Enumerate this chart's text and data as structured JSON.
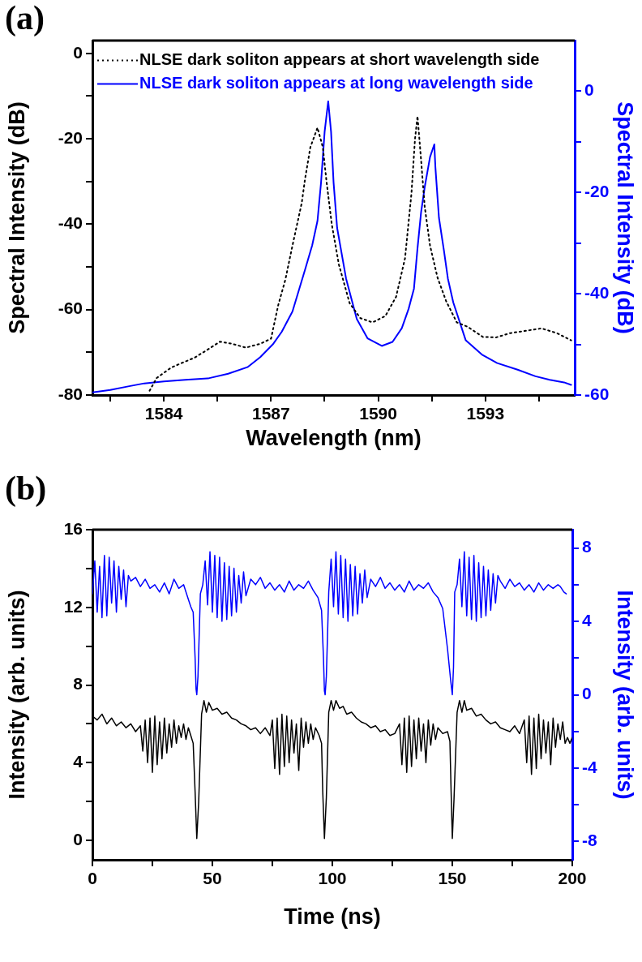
{
  "chart_data": [
    {
      "type": "line",
      "title": "(a)",
      "xlabel": "Wavelength (nm)",
      "ylabel": "Spectral Intensity (dB)",
      "y2label": "Spectral Intensity (dB)",
      "xlim": [
        1582,
        1595.5
      ],
      "xticks": [
        {
          "value": 1582.5,
          "label": null
        },
        1584,
        {
          "value": 1585.5,
          "label": null
        },
        1587,
        {
          "value": 1588.5,
          "label": null
        },
        1590,
        {
          "value": 1591.5,
          "label": null
        },
        1593,
        {
          "value": 1594.5,
          "label": null
        }
      ],
      "ylim": [
        -80,
        3
      ],
      "yticks": [
        -80,
        {
          "value": -70,
          "label": null
        },
        -60,
        {
          "value": -50,
          "label": null
        },
        -40,
        {
          "value": -30,
          "label": null
        },
        -20,
        {
          "value": -10,
          "label": null
        },
        0
      ],
      "y2lim": [
        -60,
        10
      ],
      "y2ticks": [
        -60,
        {
          "value": -50,
          "label": null
        },
        -40,
        {
          "value": -30,
          "label": null
        },
        -20,
        {
          "value": -10,
          "label": null
        },
        0
      ],
      "legend": "top left",
      "series": [
        {
          "name": "NLSE dark soliton appears at short wavelength side",
          "color": "#000000",
          "line_style": "dotted",
          "x": [
            1583.6,
            1583.8,
            1584.2,
            1584.5,
            1584.85,
            1585.2,
            1585.57,
            1585.9,
            1586.3,
            1586.7,
            1587.0,
            1587.2,
            1587.4,
            1587.6,
            1587.86,
            1587.95,
            1588.1,
            1588.3,
            1588.45,
            1588.55,
            1588.7,
            1588.9,
            1589.2,
            1589.5,
            1589.84,
            1590.2,
            1590.5,
            1590.75,
            1590.93,
            1591.03,
            1591.1,
            1591.2,
            1591.3,
            1591.45,
            1591.66,
            1591.9,
            1592.2,
            1592.5,
            1592.93,
            1593.3,
            1593.7,
            1594.1,
            1594.57,
            1595.0,
            1595.4
          ],
          "values": [
            -79,
            -76,
            -73.6,
            -72.5,
            -71.3,
            -69.5,
            -67.5,
            -68,
            -68.9,
            -68,
            -66.8,
            -59,
            -53,
            -45,
            -35,
            -29.5,
            -22,
            -17.4,
            -22,
            -29.8,
            -40,
            -49.5,
            -58.5,
            -62,
            -63,
            -61.5,
            -57,
            -48,
            -32.8,
            -20,
            -14.7,
            -25,
            -35.8,
            -45,
            -52.5,
            -58,
            -63,
            -64,
            -66.4,
            -66.5,
            -65.5,
            -65,
            -64.4,
            -65.5,
            -67.2
          ]
        },
        {
          "name": "NLSE dark soliton appears at long wavelength side",
          "color": "#0000ff",
          "line_style": "solid",
          "axis": "y2",
          "x": [
            1582,
            1582.5,
            1583,
            1583.45,
            1584,
            1584.6,
            1585.25,
            1585.8,
            1586.34,
            1586.7,
            1587.05,
            1587.3,
            1587.6,
            1587.95,
            1588.15,
            1588.3,
            1588.4,
            1588.5,
            1588.6,
            1588.68,
            1588.75,
            1588.85,
            1589.1,
            1589.4,
            1589.7,
            1590.1,
            1590.4,
            1590.66,
            1590.85,
            1591.0,
            1591.1,
            1591.2,
            1591.3,
            1591.45,
            1591.57,
            1591.6,
            1591.7,
            1591.84,
            1591.95,
            1592.1,
            1592.45,
            1592.9,
            1593.33,
            1593.9,
            1594.4,
            1594.8,
            1595.2,
            1595.4
          ],
          "values": [
            -59.5,
            -59,
            -58.3,
            -57.7,
            -57.3,
            -57,
            -56.7,
            -55.8,
            -54.5,
            -52.5,
            -50,
            -47.5,
            -43.5,
            -35.3,
            -30.5,
            -25.6,
            -18,
            -8,
            -2,
            -8,
            -18,
            -27,
            -37,
            -45,
            -48.8,
            -50.3,
            -49.5,
            -46.8,
            -43,
            -39,
            -31,
            -23.9,
            -19,
            -13,
            -10.5,
            -15,
            -25,
            -31.5,
            -37,
            -41.7,
            -49.2,
            -52,
            -53.7,
            -55,
            -56.3,
            -57,
            -57.5,
            -58
          ]
        }
      ]
    },
    {
      "type": "line",
      "title": "(b)",
      "xlabel": "Time (ns)",
      "ylabel": "Intensity (arb. units)",
      "y2label": "Intensity (arb. units)",
      "xlim": [
        0,
        200
      ],
      "xticks": [
        0,
        {
          "value": 25,
          "label": null
        },
        50,
        {
          "value": 75,
          "label": null
        },
        100,
        {
          "value": 125,
          "label": null
        },
        150,
        {
          "value": 175,
          "label": null
        },
        200
      ],
      "ylim": [
        -1,
        16
      ],
      "yticks": [
        0,
        {
          "value": 2,
          "label": null
        },
        4,
        {
          "value": 6,
          "label": null
        },
        8,
        {
          "value": 10,
          "label": null
        },
        12,
        {
          "value": 14,
          "label": null
        },
        16
      ],
      "y2lim": [
        -9,
        9
      ],
      "y2ticks": [
        -8,
        {
          "value": -6,
          "label": null
        },
        -4,
        {
          "value": -2,
          "label": null
        },
        0,
        {
          "value": 2,
          "label": null
        },
        4,
        {
          "value": 6,
          "label": null
        },
        8
      ],
      "series": [
        {
          "color": "#000000",
          "line_style": "solid",
          "x": [
            0,
            2,
            4,
            6,
            8,
            10,
            12,
            14,
            16,
            18,
            20,
            21,
            22,
            23,
            24,
            25,
            26,
            27,
            28,
            29,
            30,
            31,
            32,
            33,
            34,
            35,
            36,
            37,
            38,
            39,
            40,
            41,
            42,
            42.8,
            43.5,
            44.3,
            45.5,
            46.5,
            47.5,
            48.5,
            50,
            52,
            54,
            56,
            58,
            60,
            62,
            64,
            66,
            68,
            70,
            72,
            74,
            75,
            76,
            77,
            78,
            79,
            80,
            81,
            82,
            83,
            84,
            85,
            86,
            87,
            88,
            89,
            90,
            91,
            92,
            93,
            94.5,
            95.5,
            96,
            96.7,
            97.5,
            98.5,
            99.5,
            100.5,
            101.5,
            103,
            104.5,
            106,
            108,
            110,
            112,
            114,
            116,
            118,
            120,
            122,
            124,
            126,
            128,
            129,
            130,
            131,
            132,
            133,
            134,
            135,
            136,
            137,
            138,
            139,
            140,
            141,
            142,
            143,
            144,
            146,
            148,
            149,
            149.5,
            150,
            150.7,
            152,
            153,
            154,
            155,
            156,
            158,
            160,
            162,
            164,
            166,
            168,
            170,
            172,
            174,
            176,
            178,
            180,
            181,
            182,
            183,
            184,
            185,
            186,
            187,
            188,
            189,
            190,
            191,
            192,
            193,
            194,
            195,
            196,
            197,
            198,
            199,
            200
          ],
          "values": [
            6.4,
            6.2,
            6.5,
            6.0,
            6.3,
            5.9,
            6.1,
            5.8,
            6.0,
            5.6,
            5.9,
            4.6,
            6.2,
            4.0,
            6.3,
            3.5,
            6.4,
            3.9,
            6.1,
            4.2,
            6.3,
            4.5,
            6.0,
            4.8,
            6.2,
            5.0,
            5.9,
            5.3,
            6.0,
            5.2,
            5.8,
            5.4,
            5.0,
            2.5,
            0.1,
            2.0,
            6.5,
            7.2,
            6.6,
            7.1,
            6.7,
            6.8,
            6.5,
            6.6,
            6.3,
            6.2,
            6.0,
            5.9,
            5.7,
            5.8,
            5.5,
            5.8,
            5.4,
            6.2,
            3.7,
            6.3,
            3.4,
            6.5,
            3.8,
            6.4,
            4.0,
            6.2,
            4.5,
            6.0,
            3.6,
            6.3,
            4.8,
            6.1,
            5.0,
            6.0,
            5.2,
            5.8,
            5.4,
            5.0,
            2.5,
            0.1,
            2.2,
            6.6,
            7.2,
            6.7,
            7.2,
            6.8,
            6.9,
            6.5,
            6.6,
            6.3,
            6.1,
            6.0,
            5.8,
            5.9,
            5.6,
            5.7,
            5.4,
            5.5,
            6.0,
            3.9,
            6.3,
            3.5,
            6.4,
            3.8,
            6.2,
            4.2,
            6.3,
            4.6,
            6.0,
            4.0,
            6.2,
            4.9,
            6.0,
            5.2,
            5.8,
            5.5,
            5.6,
            5.1,
            2.5,
            0.1,
            2.1,
            6.6,
            7.2,
            6.6,
            7.2,
            6.7,
            6.8,
            6.4,
            6.5,
            6.2,
            6.0,
            6.1,
            5.8,
            5.7,
            5.6,
            5.9,
            5.5,
            6.2,
            4.0,
            6.4,
            3.4,
            6.3,
            3.7,
            6.5,
            4.2,
            6.2,
            4.5,
            6.1,
            3.9,
            6.3,
            4.8,
            6.0,
            5.2,
            6.1,
            5.0,
            5.3,
            5.0,
            5.3
          ]
        },
        {
          "color": "#0000ff",
          "line_style": "solid",
          "axis": "y2",
          "x": [
            0,
            1,
            2,
            3,
            4,
            5,
            6,
            7,
            8,
            9,
            10,
            11,
            12,
            13,
            14,
            15,
            16,
            18,
            20,
            22,
            24,
            26,
            28,
            30,
            32,
            34,
            36,
            38,
            40,
            41,
            42,
            42.8,
            43.2,
            43.5,
            44,
            45,
            46,
            47,
            48,
            49,
            50,
            51,
            52,
            53,
            54,
            55,
            56,
            57,
            58,
            59,
            60,
            61,
            62,
            63,
            64,
            66,
            68,
            70,
            72,
            74,
            76,
            78,
            80,
            82,
            84,
            86,
            88,
            90,
            92,
            94,
            95.5,
            96.3,
            96.7,
            97,
            97.5,
            98.5,
            99.5,
            100.5,
            101.5,
            102.5,
            103.5,
            104.5,
            105.5,
            106.5,
            107.5,
            108.5,
            109.5,
            110.5,
            111.5,
            112.5,
            113.5,
            114.5,
            116,
            118,
            120,
            122,
            124,
            126,
            128,
            130,
            132,
            134,
            136,
            138,
            140,
            142,
            144,
            146,
            148,
            149.3,
            150,
            150.5,
            151,
            152,
            153,
            154,
            155,
            156,
            157,
            158,
            159,
            160,
            161,
            162,
            163,
            164,
            165,
            166,
            167,
            168,
            169,
            170,
            172,
            174,
            176,
            178,
            180,
            182,
            184,
            186,
            188,
            190,
            192,
            194,
            195,
            196.5,
            197.5
          ],
          "values": [
            5.5,
            7.3,
            4.5,
            7.0,
            4.2,
            7.6,
            4.3,
            7.5,
            5.0,
            7.3,
            4.5,
            7.0,
            5.2,
            6.8,
            4.8,
            6.5,
            6.2,
            6.4,
            5.9,
            6.3,
            5.8,
            6.0,
            5.6,
            6.1,
            5.5,
            6.3,
            5.8,
            6.0,
            5.2,
            4.8,
            4.5,
            2.0,
            0.3,
            0.0,
            1.0,
            5.5,
            6.0,
            7.3,
            4.9,
            7.8,
            4.5,
            7.6,
            4.2,
            7.5,
            4.0,
            7.2,
            4.1,
            7.0,
            4.3,
            6.9,
            4.5,
            6.5,
            5.0,
            6.7,
            5.4,
            6.3,
            6.0,
            6.4,
            5.8,
            6.1,
            5.7,
            6.0,
            5.6,
            6.2,
            5.7,
            6.0,
            5.8,
            6.2,
            5.7,
            5.3,
            4.6,
            2.0,
            0.2,
            0.0,
            1.0,
            5.6,
            7.4,
            4.8,
            7.8,
            4.4,
            7.6,
            4.2,
            7.4,
            4.0,
            7.1,
            4.3,
            7.0,
            4.4,
            6.6,
            5.0,
            6.8,
            5.3,
            6.3,
            5.9,
            6.4,
            5.8,
            6.1,
            5.7,
            6.0,
            5.6,
            6.2,
            5.7,
            6.0,
            5.8,
            6.1,
            5.6,
            5.3,
            4.7,
            2.5,
            0.8,
            0.0,
            1.5,
            5.6,
            6.0,
            7.4,
            4.8,
            7.8,
            4.3,
            7.5,
            4.1,
            7.6,
            4.0,
            7.2,
            4.2,
            7.0,
            4.3,
            6.8,
            4.6,
            6.6,
            5.0,
            6.5,
            6.2,
            5.8,
            6.3,
            5.9,
            6.1,
            5.7,
            6.0,
            5.6,
            6.1,
            5.7,
            6.0,
            5.8,
            6.0,
            5.9,
            5.6,
            5.5
          ]
        }
      ]
    }
  ]
}
